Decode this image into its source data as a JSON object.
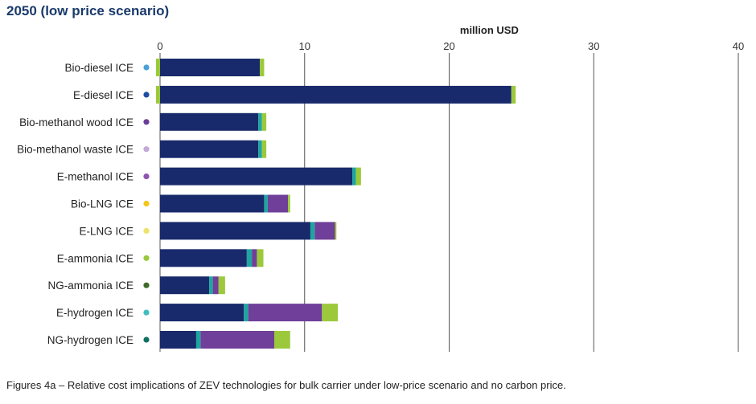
{
  "page": {
    "title": "2050 (low price scenario)",
    "caption": "Figures 4a – Relative cost implications of ZEV technologies for bulk carrier under low-price scenario and no carbon price."
  },
  "chart_data": {
    "type": "bar",
    "orientation": "horizontal",
    "stacked": true,
    "xlabel": "million USD",
    "xlim": [
      0,
      40
    ],
    "xticks": [
      0,
      10,
      20,
      30,
      40
    ],
    "grid": "vertical",
    "categories": [
      "Bio-diesel ICE",
      "E-diesel ICE",
      "Bio-methanol wood ICE",
      "Bio-methanol waste ICE",
      "E-methanol ICE",
      "Bio-LNG ICE",
      "E-LNG ICE",
      "E-ammonia ICE",
      "NG-ammonia ICE",
      "E-hydrogen ICE",
      "NG-hydrogen ICE"
    ],
    "marker_colors": [
      "#4a9fd6",
      "#1f4ea3",
      "#6a3d9a",
      "#c3a8d8",
      "#8e56b0",
      "#f5c518",
      "#eee46a",
      "#98c93c",
      "#3f6b2a",
      "#3fbfbf",
      "#0f6f62"
    ],
    "series": [
      {
        "color": "#182a6b",
        "values": [
          6.9,
          24.3,
          6.8,
          6.8,
          13.3,
          7.2,
          10.4,
          6.0,
          3.4,
          5.8,
          2.5
        ]
      },
      {
        "color": "#1fa5a0",
        "values": [
          0,
          0,
          0.25,
          0.25,
          0.25,
          0.25,
          0.3,
          0.35,
          0.25,
          0.3,
          0.3
        ]
      },
      {
        "color": "#6f3f99",
        "values": [
          0,
          0,
          0,
          0,
          0,
          1.4,
          1.4,
          0.35,
          0.4,
          5.1,
          5.1
        ]
      },
      {
        "color": "#9cc93c",
        "values": [
          0.3,
          0.3,
          0.3,
          0.3,
          0.35,
          0.15,
          0.1,
          0.45,
          0.45,
          1.1,
          1.1
        ]
      }
    ]
  }
}
